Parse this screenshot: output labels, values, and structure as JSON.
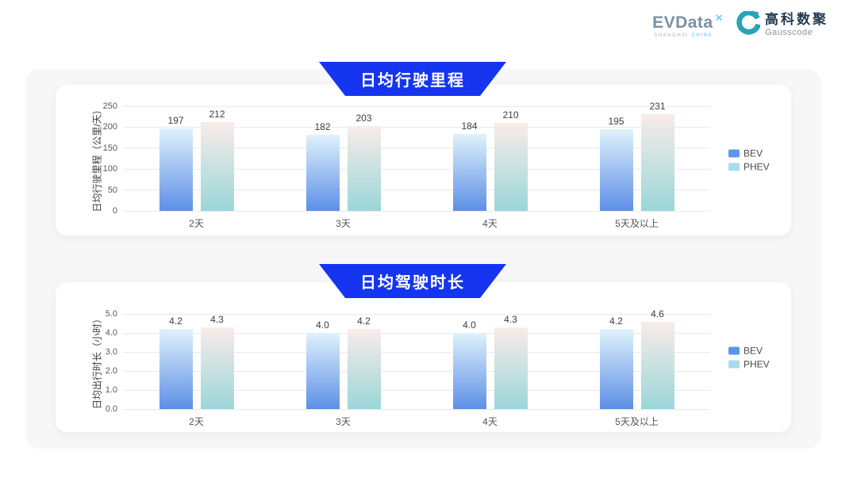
{
  "logo": {
    "evdata": {
      "wordmark": "EVData",
      "sup": "✕",
      "subtext_left": "SHANGHAI",
      "subtext_right": "CHINA"
    },
    "gausscode": {
      "cn": "高科数聚",
      "en": "Gausscode"
    }
  },
  "colors": {
    "banner_blue": "#1535f0",
    "panel_bg": "#f7f7f8",
    "card_bg": "#ffffff",
    "grid_line": "#e9e9ec",
    "bev_gradient_top": "#dff2fc",
    "bev_gradient_bottom": "#5d8fe6",
    "phev_gradient_top": "#f9ece9",
    "phev_gradient_bottom": "#9bd6d8",
    "legend_bev": "#5c96e8",
    "legend_phev": "#a8dce8",
    "evdata_gray": "#7c90a6",
    "evdata_blue": "#45c5ee",
    "gausscode_teal": "#2aa3b8",
    "gausscode_dark": "#223a50"
  },
  "chart_data": [
    {
      "type": "bar",
      "title": "日均行驶里程",
      "ylabel": "日均行驶里程（公里/天）",
      "categories": [
        "2天",
        "3天",
        "4天",
        "5天及以上"
      ],
      "series": [
        {
          "name": "BEV",
          "values": [
            197,
            182,
            184,
            195
          ]
        },
        {
          "name": "PHEV",
          "values": [
            212,
            203,
            210,
            231
          ]
        }
      ],
      "ylim": [
        0,
        250
      ],
      "ytick_labels": [
        "0",
        "50",
        "100",
        "150",
        "200",
        "250"
      ],
      "value_decimals": 0,
      "grid": true,
      "legend": [
        "BEV",
        "PHEV"
      ],
      "legend_position": "right"
    },
    {
      "type": "bar",
      "title": "日均驾驶时长",
      "ylabel": "日均出行时长（小时）",
      "categories": [
        "2天",
        "3天",
        "4天",
        "5天及以上"
      ],
      "series": [
        {
          "name": "BEV",
          "values": [
            4.2,
            4.0,
            4.0,
            4.2
          ]
        },
        {
          "name": "PHEV",
          "values": [
            4.3,
            4.2,
            4.3,
            4.6
          ]
        }
      ],
      "ylim": [
        0,
        5.0
      ],
      "ytick_labels": [
        "0.0",
        "1.0",
        "2.0",
        "3.0",
        "4.0",
        "5.0"
      ],
      "value_decimals": 1,
      "grid": true,
      "legend": [
        "BEV",
        "PHEV"
      ],
      "legend_position": "right"
    }
  ]
}
